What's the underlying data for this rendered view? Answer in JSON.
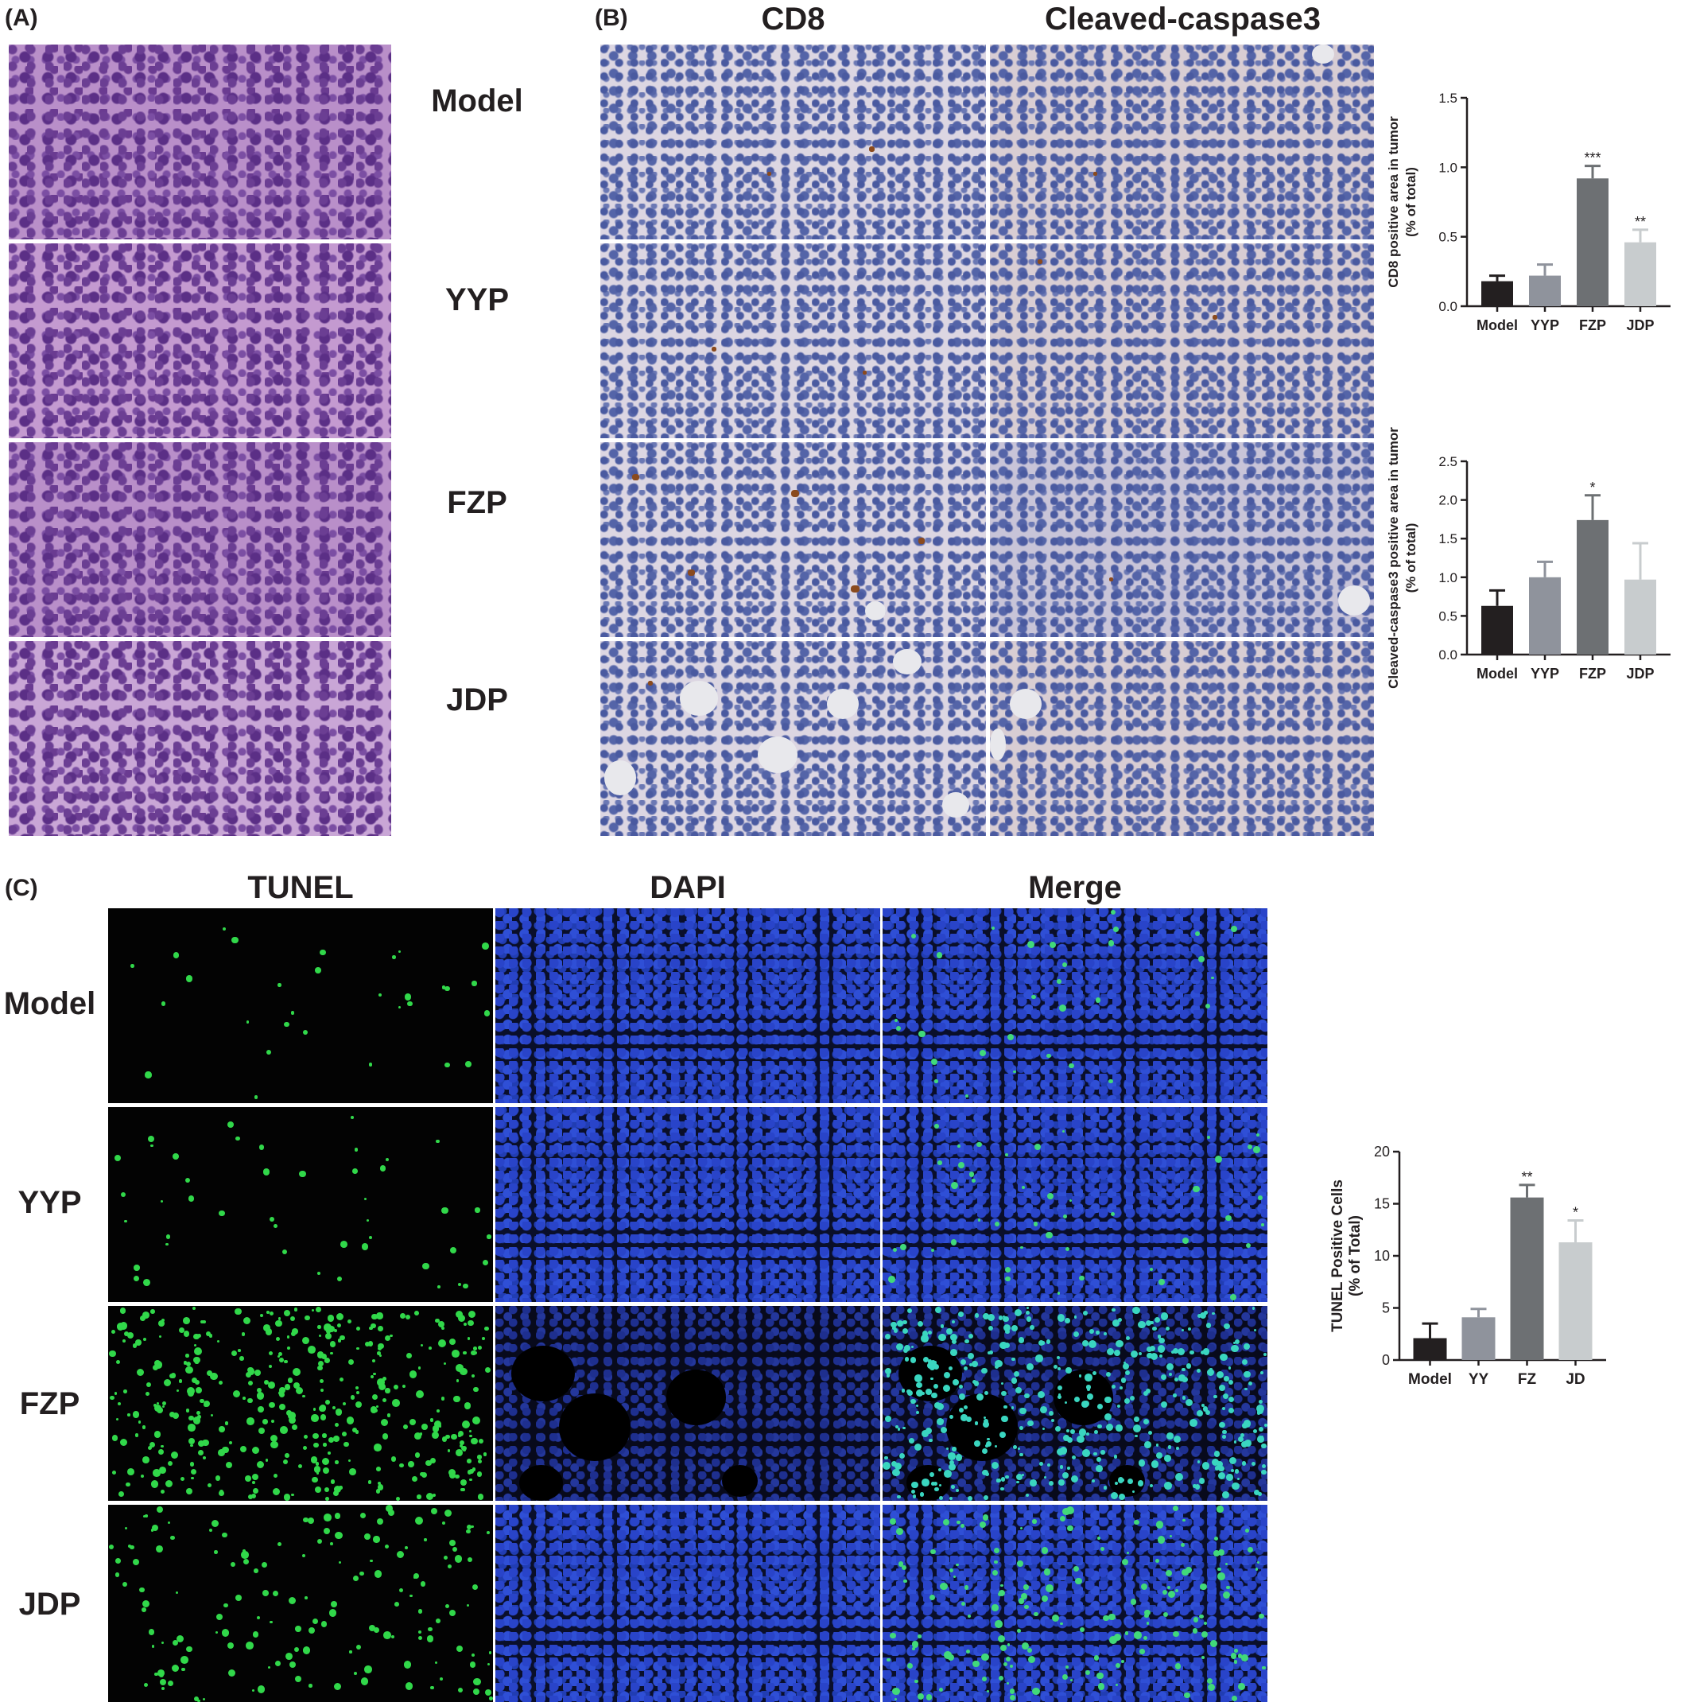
{
  "panel_a": {
    "letter": "(A)",
    "rows": [
      "Model",
      "YYP",
      "FZP",
      "JDP"
    ]
  },
  "panel_b": {
    "letter": "(B)",
    "columns": [
      "CD8",
      "Cleaved-caspase3"
    ]
  },
  "panel_c": {
    "letter": "(C)",
    "columns": [
      "TUNEL",
      "DAPI",
      "Merge"
    ],
    "rows": [
      "Model",
      "YYP",
      "FZP",
      "JDP"
    ]
  },
  "colors": {
    "model": "#231f20",
    "yyp": "#8f939c",
    "fzp": "#6d7073",
    "jdp": "#c8ccce",
    "tunel_green": "#31d84a",
    "dapi_blue": "#2944c9"
  },
  "chart_data": [
    {
      "id": "cd8",
      "type": "bar",
      "categories": [
        "Model",
        "YYP",
        "FZP",
        "JDP"
      ],
      "values": [
        0.18,
        0.22,
        0.92,
        0.46
      ],
      "errors": [
        0.04,
        0.08,
        0.09,
        0.09
      ],
      "significance": [
        "",
        "",
        "***",
        "**"
      ],
      "ylabel": [
        "CD8 positive area in tumor",
        "(% of total)"
      ],
      "ylim": [
        0,
        1.5
      ],
      "yticks": [
        "0.0",
        "0.5",
        "1.0",
        "1.5"
      ]
    },
    {
      "id": "cc3",
      "type": "bar",
      "categories": [
        "Model",
        "YYP",
        "FZP",
        "JDP"
      ],
      "values": [
        0.63,
        1.0,
        1.74,
        0.97
      ],
      "errors": [
        0.2,
        0.2,
        0.32,
        0.47
      ],
      "significance": [
        "",
        "",
        "*",
        ""
      ],
      "ylabel": [
        "Cleaved-caspase3 positive area in tumor",
        "(% of total)"
      ],
      "ylim": [
        0,
        2.5
      ],
      "yticks": [
        "0.0",
        "0.5",
        "1.0",
        "1.5",
        "2.0",
        "2.5"
      ]
    },
    {
      "id": "tunel",
      "type": "bar",
      "categories": [
        "Model",
        "YY",
        "FZ",
        "JD"
      ],
      "values": [
        2.1,
        4.1,
        15.6,
        11.3
      ],
      "errors": [
        1.4,
        0.8,
        1.2,
        2.1
      ],
      "significance": [
        "",
        "",
        "**",
        "*"
      ],
      "ylabel": [
        "TUNEL Positive Cells",
        "(% of Total)"
      ],
      "ylim": [
        0,
        20
      ],
      "yticks": [
        "0",
        "5",
        "10",
        "15",
        "20"
      ]
    }
  ]
}
